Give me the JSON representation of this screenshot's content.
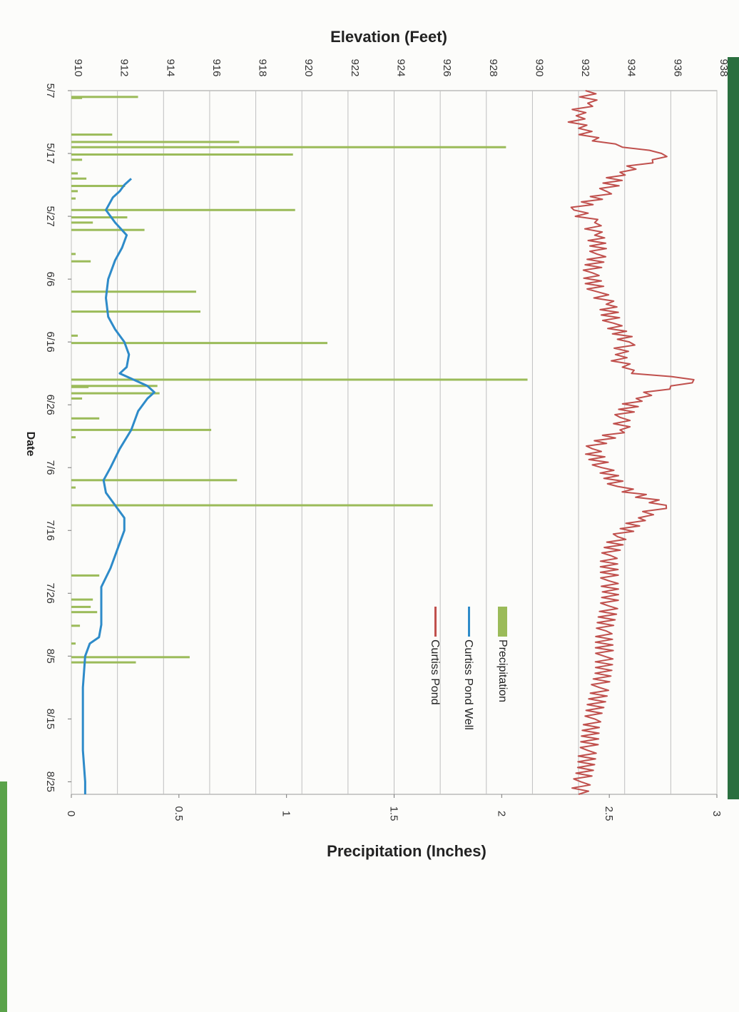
{
  "colors": {
    "precipitation": "#9bbb59",
    "well": "#2e8bc9",
    "pond": "#c0504d",
    "grid": "#bfbfbf",
    "scan_edge": "#2a6f3f",
    "scan_edge_left": "#5aa34a"
  },
  "chart_data": {
    "type": "bar+line",
    "orientation": "rotated 90 degrees clockwise",
    "xlabel": "Date",
    "ylabel_left": "Elevation (Feet)",
    "ylabel_right": "Precipitation (Inches)",
    "grid": true,
    "legend_position": "right-center",
    "date_ticks": [
      "5/7",
      "5/17",
      "5/27",
      "6/6",
      "6/16",
      "6/26",
      "7/6",
      "7/16",
      "7/26",
      "8/5",
      "8/15",
      "8/25"
    ],
    "elevation_axis": {
      "range": [
        910,
        938
      ],
      "ticks": [
        "910",
        "912",
        "914",
        "916",
        "918",
        "920",
        "922",
        "924",
        "926",
        "928",
        "930",
        "932",
        "934",
        "936",
        "938"
      ]
    },
    "precip_axis": {
      "range": [
        0,
        3
      ],
      "ticks": [
        "0",
        "0.5",
        "1",
        "1.5",
        "2",
        "2.5",
        "3"
      ]
    },
    "legend": [
      "Precipitation",
      "Curtiss Pond Well",
      "Curtiss Pond"
    ],
    "series": [
      {
        "name": "Precipitation",
        "kind": "bar",
        "axis": "precipitation",
        "points": [
          {
            "date": "5/8",
            "value": 0.31
          },
          {
            "date": "5/8",
            "value": 0.05
          },
          {
            "date": "5/14",
            "value": 0.19
          },
          {
            "date": "5/15",
            "value": 0.78
          },
          {
            "date": "5/16",
            "value": 2.02
          },
          {
            "date": "5/17",
            "value": 1.03
          },
          {
            "date": "5/18",
            "value": 0.05
          },
          {
            "date": "5/20",
            "value": 0.03
          },
          {
            "date": "5/21",
            "value": 0.07
          },
          {
            "date": "5/22",
            "value": 0.25
          },
          {
            "date": "5/23",
            "value": 0.03
          },
          {
            "date": "5/24",
            "value": 0.02
          },
          {
            "date": "5/26",
            "value": 1.04
          },
          {
            "date": "5/27",
            "value": 0.26
          },
          {
            "date": "5/28",
            "value": 0.1
          },
          {
            "date": "5/29",
            "value": 0.34
          },
          {
            "date": "6/2",
            "value": 0.02
          },
          {
            "date": "6/3",
            "value": 0.09
          },
          {
            "date": "6/8",
            "value": 0.58
          },
          {
            "date": "6/11",
            "value": 0.6
          },
          {
            "date": "6/15",
            "value": 0.03
          },
          {
            "date": "6/16",
            "value": 1.19
          },
          {
            "date": "6/22",
            "value": 2.12
          },
          {
            "date": "6/23",
            "value": 0.08
          },
          {
            "date": "6/23",
            "value": 0.4
          },
          {
            "date": "6/24",
            "value": 0.41
          },
          {
            "date": "6/25",
            "value": 0.05
          },
          {
            "date": "6/28",
            "value": 0.13
          },
          {
            "date": "6/30",
            "value": 0.65
          },
          {
            "date": "7/1",
            "value": 0.02
          },
          {
            "date": "7/8",
            "value": 0.77
          },
          {
            "date": "7/9",
            "value": 0.02
          },
          {
            "date": "7/12",
            "value": 1.68
          },
          {
            "date": "7/23",
            "value": 0.13
          },
          {
            "date": "7/27",
            "value": 0.1
          },
          {
            "date": "7/28",
            "value": 0.09
          },
          {
            "date": "7/29",
            "value": 0.12
          },
          {
            "date": "7/31",
            "value": 0.04
          },
          {
            "date": "8/3",
            "value": 0.02
          },
          {
            "date": "8/5",
            "value": 0.55
          },
          {
            "date": "8/6",
            "value": 0.3
          }
        ]
      },
      {
        "name": "Curtiss Pond Well",
        "kind": "line",
        "axis": "elevation",
        "points": [
          {
            "date": "5/21",
            "value": 912.6
          },
          {
            "date": "5/22",
            "value": 912.3
          },
          {
            "date": "5/23",
            "value": 912.1
          },
          {
            "date": "5/24",
            "value": 911.8
          },
          {
            "date": "5/26",
            "value": 911.5
          },
          {
            "date": "5/28",
            "value": 911.9
          },
          {
            "date": "5/30",
            "value": 912.4
          },
          {
            "date": "6/1",
            "value": 912.2
          },
          {
            "date": "6/3",
            "value": 911.9
          },
          {
            "date": "6/6",
            "value": 911.6
          },
          {
            "date": "6/9",
            "value": 911.5
          },
          {
            "date": "6/12",
            "value": 911.6
          },
          {
            "date": "6/14",
            "value": 911.9
          },
          {
            "date": "6/16",
            "value": 912.3
          },
          {
            "date": "6/18",
            "value": 912.5
          },
          {
            "date": "6/20",
            "value": 912.4
          },
          {
            "date": "6/21",
            "value": 912.1
          },
          {
            "date": "6/22",
            "value": 912.7
          },
          {
            "date": "6/23",
            "value": 913.3
          },
          {
            "date": "6/24",
            "value": 913.6
          },
          {
            "date": "6/25",
            "value": 913.3
          },
          {
            "date": "6/27",
            "value": 912.9
          },
          {
            "date": "6/30",
            "value": 912.6
          },
          {
            "date": "7/3",
            "value": 912.1
          },
          {
            "date": "7/6",
            "value": 911.7
          },
          {
            "date": "7/8",
            "value": 911.4
          },
          {
            "date": "7/10",
            "value": 911.5
          },
          {
            "date": "7/12",
            "value": 911.9
          },
          {
            "date": "7/14",
            "value": 912.3
          },
          {
            "date": "7/16",
            "value": 912.3
          },
          {
            "date": "7/19",
            "value": 912.0
          },
          {
            "date": "7/22",
            "value": 911.7
          },
          {
            "date": "7/25",
            "value": 911.3
          },
          {
            "date": "7/28",
            "value": 911.3
          },
          {
            "date": "7/31",
            "value": 911.3
          },
          {
            "date": "8/2",
            "value": 911.2
          },
          {
            "date": "8/3",
            "value": 910.8
          },
          {
            "date": "8/5",
            "value": 910.6
          },
          {
            "date": "8/10",
            "value": 910.5
          },
          {
            "date": "8/15",
            "value": 910.5
          },
          {
            "date": "8/20",
            "value": 910.5
          },
          {
            "date": "8/25",
            "value": 910.6
          },
          {
            "date": "8/27",
            "value": 910.6
          }
        ]
      },
      {
        "name": "Curtiss Pond",
        "kind": "line",
        "axis": "elevation",
        "points": [
          {
            "date": "5/7",
            "value": 932.3
          },
          {
            "date": "5/9",
            "value": 932.4
          },
          {
            "date": "5/11",
            "value": 931.9
          },
          {
            "date": "5/13",
            "value": 932.0
          },
          {
            "date": "5/15",
            "value": 932.6
          },
          {
            "date": "5/16",
            "value": 933.9
          },
          {
            "date": "5/17",
            "value": 935.6
          },
          {
            "date": "5/18",
            "value": 935.2
          },
          {
            "date": "5/20",
            "value": 933.8
          },
          {
            "date": "5/23",
            "value": 933.2
          },
          {
            "date": "5/26",
            "value": 931.8
          },
          {
            "date": "5/28",
            "value": 932.7
          },
          {
            "date": "5/30",
            "value": 932.7
          },
          {
            "date": "6/2",
            "value": 932.8
          },
          {
            "date": "6/5",
            "value": 932.6
          },
          {
            "date": "6/8",
            "value": 932.8
          },
          {
            "date": "6/10",
            "value": 933.2
          },
          {
            "date": "6/13",
            "value": 933.5
          },
          {
            "date": "6/16",
            "value": 934.2
          },
          {
            "date": "6/18",
            "value": 933.6
          },
          {
            "date": "6/20",
            "value": 933.9
          },
          {
            "date": "6/21",
            "value": 934.3
          },
          {
            "date": "6/22",
            "value": 937.0
          },
          {
            "date": "6/23",
            "value": 936.0
          },
          {
            "date": "6/25",
            "value": 934.5
          },
          {
            "date": "6/28",
            "value": 933.8
          },
          {
            "date": "6/30",
            "value": 933.8
          },
          {
            "date": "7/3",
            "value": 932.6
          },
          {
            "date": "7/6",
            "value": 933.0
          },
          {
            "date": "7/9",
            "value": 933.7
          },
          {
            "date": "7/12",
            "value": 935.8
          },
          {
            "date": "7/14",
            "value": 934.6
          },
          {
            "date": "7/17",
            "value": 933.7
          },
          {
            "date": "7/20",
            "value": 933.4
          },
          {
            "date": "7/24",
            "value": 933.3
          },
          {
            "date": "7/28",
            "value": 933.3
          },
          {
            "date": "8/1",
            "value": 933.2
          },
          {
            "date": "8/5",
            "value": 933.1
          },
          {
            "date": "8/10",
            "value": 932.9
          },
          {
            "date": "8/15",
            "value": 932.7
          },
          {
            "date": "8/20",
            "value": 932.4
          },
          {
            "date": "8/25",
            "value": 932.1
          },
          {
            "date": "8/27",
            "value": 932.0
          }
        ]
      }
    ]
  }
}
